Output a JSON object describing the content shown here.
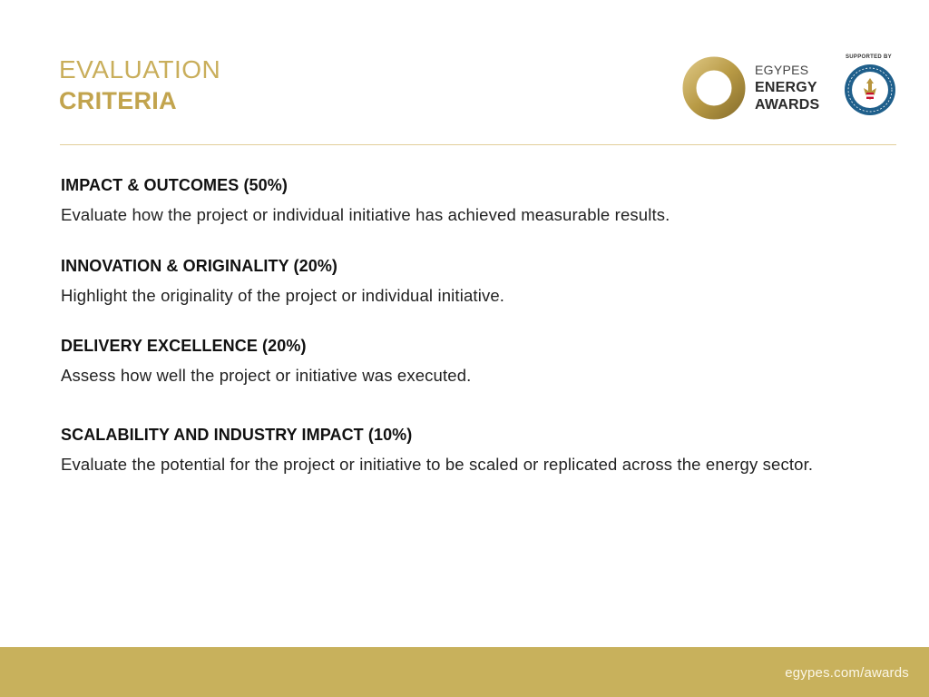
{
  "header": {
    "title_line1": "EVALUATION",
    "title_line2": "CRITERIA"
  },
  "logo": {
    "line1": "EGYPES",
    "line2": "ENERGY",
    "line3": "AWARDS",
    "supported_by": "SUPPORTED BY",
    "colors": {
      "gold": "#c8ad5e",
      "seal_blue": "#1f5f8b"
    }
  },
  "criteria": [
    {
      "heading": "IMPACT & OUTCOMES (50%)",
      "description": "Evaluate how the project or individual initiative has achieved measurable results."
    },
    {
      "heading": "INNOVATION & ORIGINALITY (20%)",
      "description": "Highlight the originality of the project or individual initiative."
    },
    {
      "heading": "DELIVERY EXCELLENCE (20%)",
      "description": "Assess how well the project or initiative was executed."
    },
    {
      "heading": "SCALABILITY AND INDUSTRY IMPACT (10%)",
      "description": "Evaluate the potential for the project or initiative to be scaled or replicated across the energy sector."
    }
  ],
  "footer": {
    "url": "egypes.com/awards",
    "background_color": "#c8b15c"
  }
}
